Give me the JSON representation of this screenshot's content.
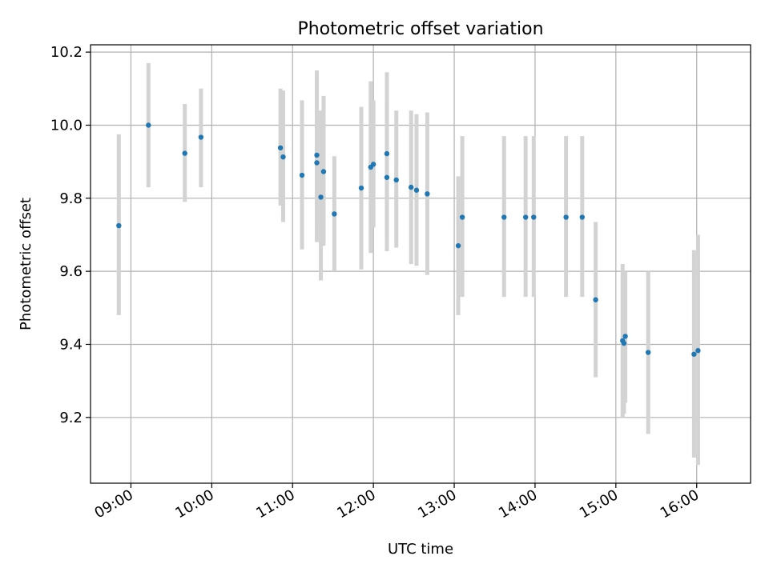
{
  "chart_data": {
    "type": "scatter",
    "title": "Photometric offset variation",
    "xlabel": "UTC time",
    "ylabel": "Photometric offset",
    "x_axis_kind": "time",
    "xlim": [
      "08:30",
      "16:40"
    ],
    "ylim": [
      9.02,
      10.22
    ],
    "x_ticks": [
      "09:00",
      "10:00",
      "11:00",
      "12:00",
      "13:00",
      "14:00",
      "15:00",
      "16:00"
    ],
    "y_ticks": [
      "9.2",
      "9.4",
      "9.6",
      "9.8",
      "10.0",
      "10.2"
    ],
    "grid": true,
    "legend": "none",
    "colors": {
      "marker": "#1f77b4",
      "errorbar": "#d3d3d3",
      "grid": "#b0b0b0",
      "axes": "#000000"
    },
    "points": [
      {
        "x": "08:51",
        "y": 9.725,
        "ylo": 9.48,
        "yhi": 9.975
      },
      {
        "x": "09:13",
        "y": 10.0,
        "ylo": 9.83,
        "yhi": 10.17
      },
      {
        "x": "09:40",
        "y": 9.923,
        "ylo": 9.79,
        "yhi": 10.058
      },
      {
        "x": "09:52",
        "y": 9.967,
        "ylo": 9.83,
        "yhi": 10.1
      },
      {
        "x": "10:51",
        "y": 9.938,
        "ylo": 9.78,
        "yhi": 10.1
      },
      {
        "x": "10:53",
        "y": 9.913,
        "ylo": 9.735,
        "yhi": 10.095
      },
      {
        "x": "11:07",
        "y": 9.863,
        "ylo": 9.66,
        "yhi": 10.068
      },
      {
        "x": "11:18",
        "y": 9.918,
        "ylo": 9.68,
        "yhi": 10.15
      },
      {
        "x": "11:18",
        "y": 9.897,
        "ylo": 9.72,
        "yhi": 10.13
      },
      {
        "x": "11:21",
        "y": 9.803,
        "ylo": 9.575,
        "yhi": 10.04
      },
      {
        "x": "11:23",
        "y": 9.873,
        "ylo": 9.67,
        "yhi": 10.08
      },
      {
        "x": "11:31",
        "y": 9.757,
        "ylo": 9.6,
        "yhi": 9.915
      },
      {
        "x": "11:51",
        "y": 9.828,
        "ylo": 9.605,
        "yhi": 10.05
      },
      {
        "x": "11:58",
        "y": 9.885,
        "ylo": 9.65,
        "yhi": 10.12
      },
      {
        "x": "12:00",
        "y": 9.893,
        "ylo": 9.72,
        "yhi": 10.068
      },
      {
        "x": "12:10",
        "y": 9.922,
        "ylo": 9.71,
        "yhi": 10.145
      },
      {
        "x": "12:10",
        "y": 9.857,
        "ylo": 9.655,
        "yhi": 10.06
      },
      {
        "x": "12:17",
        "y": 9.85,
        "ylo": 9.665,
        "yhi": 10.04
      },
      {
        "x": "12:28",
        "y": 9.83,
        "ylo": 9.62,
        "yhi": 10.04
      },
      {
        "x": "12:32",
        "y": 9.822,
        "ylo": 9.615,
        "yhi": 10.03
      },
      {
        "x": "12:40",
        "y": 9.812,
        "ylo": 9.59,
        "yhi": 10.035
      },
      {
        "x": "13:03",
        "y": 9.67,
        "ylo": 9.48,
        "yhi": 9.86
      },
      {
        "x": "13:06",
        "y": 9.748,
        "ylo": 9.53,
        "yhi": 9.97
      },
      {
        "x": "13:37",
        "y": 9.748,
        "ylo": 9.53,
        "yhi": 9.97
      },
      {
        "x": "13:53",
        "y": 9.748,
        "ylo": 9.53,
        "yhi": 9.97
      },
      {
        "x": "13:59",
        "y": 9.748,
        "ylo": 9.53,
        "yhi": 9.97
      },
      {
        "x": "14:23",
        "y": 9.748,
        "ylo": 9.53,
        "yhi": 9.97
      },
      {
        "x": "14:35",
        "y": 9.748,
        "ylo": 9.53,
        "yhi": 9.97
      },
      {
        "x": "14:45",
        "y": 9.522,
        "ylo": 9.31,
        "yhi": 9.735
      },
      {
        "x": "15:05",
        "y": 9.41,
        "ylo": 9.2,
        "yhi": 9.62
      },
      {
        "x": "15:06",
        "y": 9.403,
        "ylo": 9.21,
        "yhi": 9.6
      },
      {
        "x": "15:07",
        "y": 9.422,
        "ylo": 9.24,
        "yhi": 9.6
      },
      {
        "x": "15:24",
        "y": 9.378,
        "ylo": 9.155,
        "yhi": 9.6
      },
      {
        "x": "15:58",
        "y": 9.373,
        "ylo": 9.09,
        "yhi": 9.658
      },
      {
        "x": "16:01",
        "y": 9.383,
        "ylo": 9.07,
        "yhi": 9.7
      }
    ]
  }
}
